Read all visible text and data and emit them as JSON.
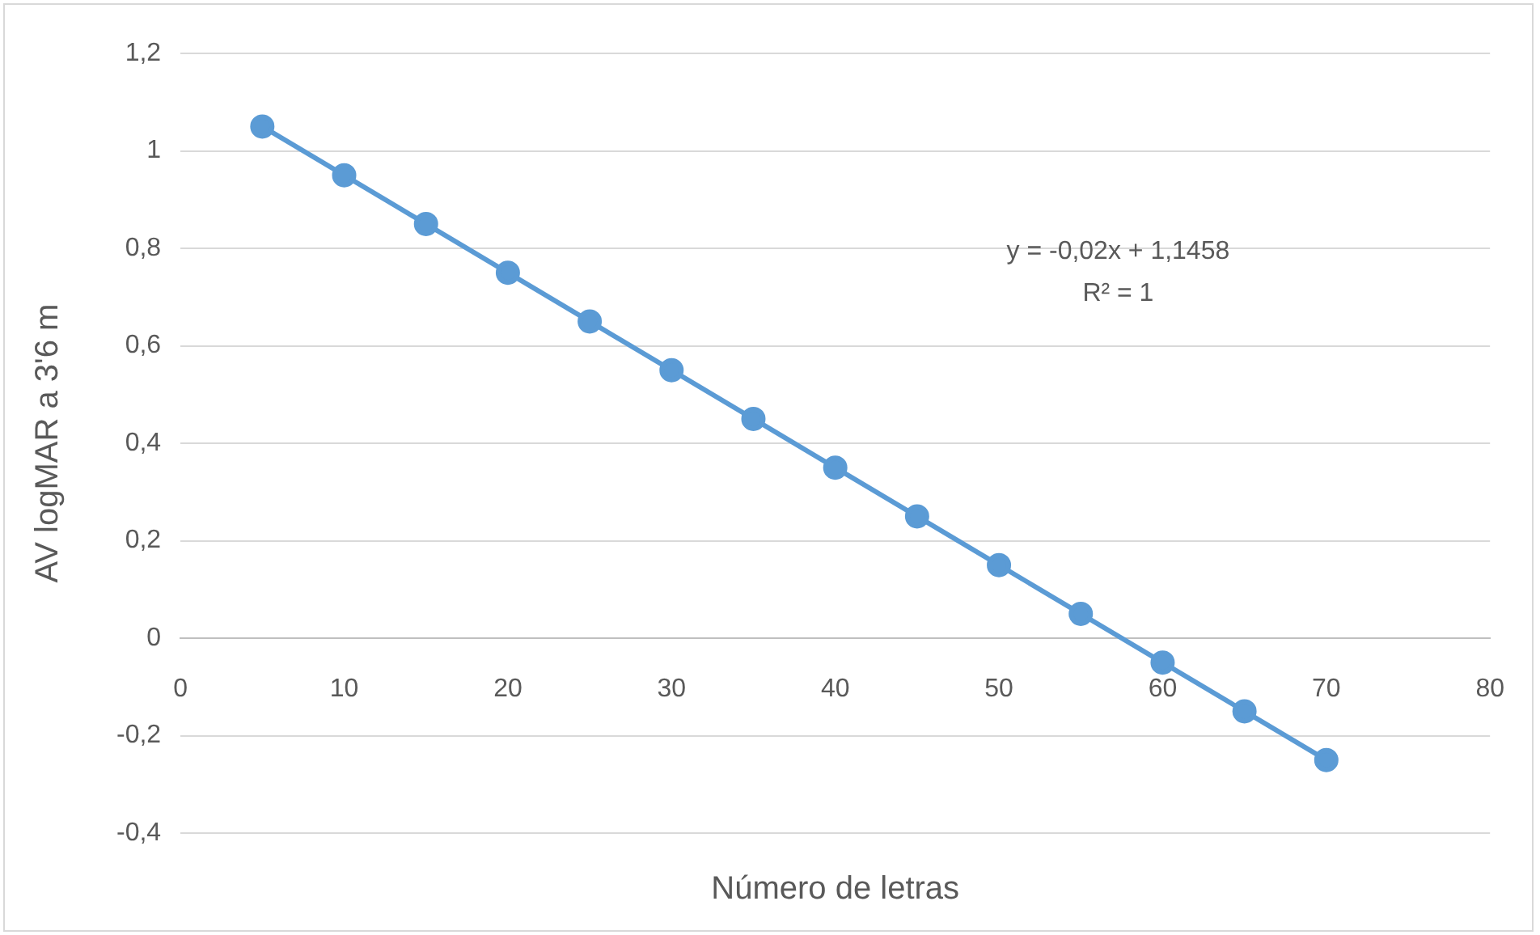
{
  "chart_data": {
    "type": "line",
    "xlabel": "Número de letras",
    "ylabel": "AV logMAR a 3'6 m",
    "x": [
      5,
      10,
      15,
      20,
      25,
      30,
      35,
      40,
      45,
      50,
      55,
      60,
      65,
      70
    ],
    "series": [
      {
        "color": "#5b9bd5",
        "values": [
          1.05,
          0.95,
          0.85,
          0.75,
          0.65,
          0.55,
          0.45,
          0.35,
          0.25,
          0.15,
          0.05,
          -0.05,
          -0.15,
          -0.25
        ]
      }
    ],
    "xlim": [
      0,
      80
    ],
    "xticks": [
      0,
      10,
      20,
      30,
      40,
      50,
      60,
      70,
      80
    ],
    "ylim": [
      -0.4,
      1.2
    ],
    "yticks": [
      {
        "value": -0.4,
        "label": "-0,4"
      },
      {
        "value": -0.2,
        "label": "-0,2"
      },
      0,
      {
        "value": 0.2,
        "label": "0,2"
      },
      {
        "value": 0.4,
        "label": "0,4"
      },
      {
        "value": 0.6,
        "label": "0,6"
      },
      {
        "value": 0.8,
        "label": "0,8"
      },
      1,
      {
        "value": 1.2,
        "label": "1,2"
      }
    ],
    "grid": "y",
    "marker": "circle",
    "line_style": "solid",
    "annotations": [
      "y = -0,02x + 1,1458",
      "R² = 1"
    ]
  }
}
